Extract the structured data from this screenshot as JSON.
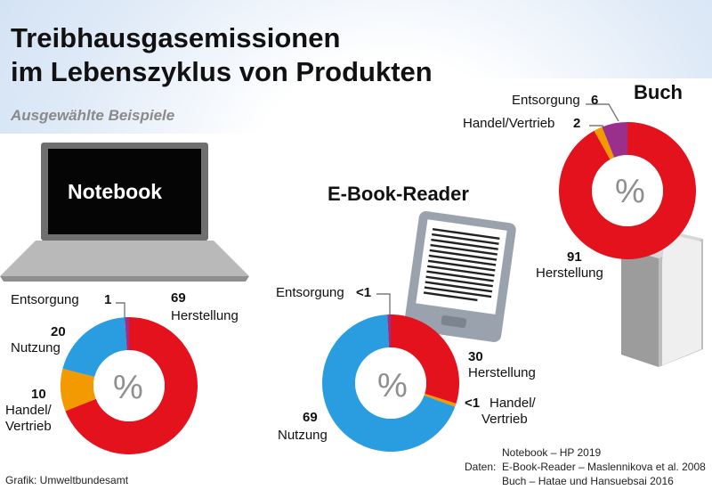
{
  "title_line1": "Treibhausgasemissionen",
  "title_line2": "im Lebenszyklus von Produkten",
  "subtitle": "Ausgewählte Beispiele",
  "percent_symbol": "%",
  "colors": {
    "herstellung": "#e3121d",
    "handel_vertrieb": "#f39a00",
    "nutzung": "#2a9de0",
    "entsorgung": "#9a2f8c"
  },
  "chart_data": [
    {
      "type": "pie",
      "title": "Notebook",
      "unit": "%",
      "slices": [
        {
          "label": "Herstellung",
          "value": 69
        },
        {
          "label": "Handel/Vertrieb",
          "value": 10
        },
        {
          "label": "Nutzung",
          "value": 20
        },
        {
          "label": "Entsorgung",
          "value": 1
        }
      ]
    },
    {
      "type": "pie",
      "title": "E-Book-Reader",
      "unit": "%",
      "slices": [
        {
          "label": "Herstellung",
          "value": 30,
          "display": "30"
        },
        {
          "label": "Handel/Vertrieb",
          "value": 0.8,
          "display": "<1"
        },
        {
          "label": "Nutzung",
          "value": 69,
          "display": "69"
        },
        {
          "label": "Entsorgung",
          "value": 0.8,
          "display": "<1"
        }
      ]
    },
    {
      "type": "pie",
      "title": "Buch",
      "unit": "%",
      "slices": [
        {
          "label": "Herstellung",
          "value": 91
        },
        {
          "label": "Handel/Vertrieb",
          "value": 2
        },
        {
          "label": "Entsorgung",
          "value": 6
        }
      ]
    }
  ],
  "labels": {
    "notebook": {
      "entsorgung": "Entsorgung",
      "entsorgung_value": "1",
      "herstellung_value": "69",
      "herstellung": "Herstellung",
      "nutzung_value": "20",
      "nutzung": "Nutzung",
      "handel_value": "10",
      "handel_line1": "Handel/",
      "handel_line2": "Vertrieb"
    },
    "ebook": {
      "entsorgung": "Entsorgung",
      "entsorgung_value": "<1",
      "herstellung_value": "30",
      "herstellung": "Herstellung",
      "handel_value": "<1",
      "handel_line1": "Handel/",
      "handel_line2": "Vertrieb",
      "nutzung_value": "69",
      "nutzung": "Nutzung"
    },
    "buch": {
      "entsorgung": "Entsorgung",
      "entsorgung_value": "6",
      "handel": "Handel/Vertrieb",
      "handel_value": "2",
      "herstellung_value": "91",
      "herstellung": "Herstellung"
    }
  },
  "footer": {
    "credit": "Grafik: Umweltbundesamt",
    "sources_label": "Daten:",
    "sources": [
      "Notebook – HP 2019",
      "E-Book-Reader – Maslennikova et al. 2008",
      "Buch – Hatae und Hansuebsai 2016"
    ]
  }
}
